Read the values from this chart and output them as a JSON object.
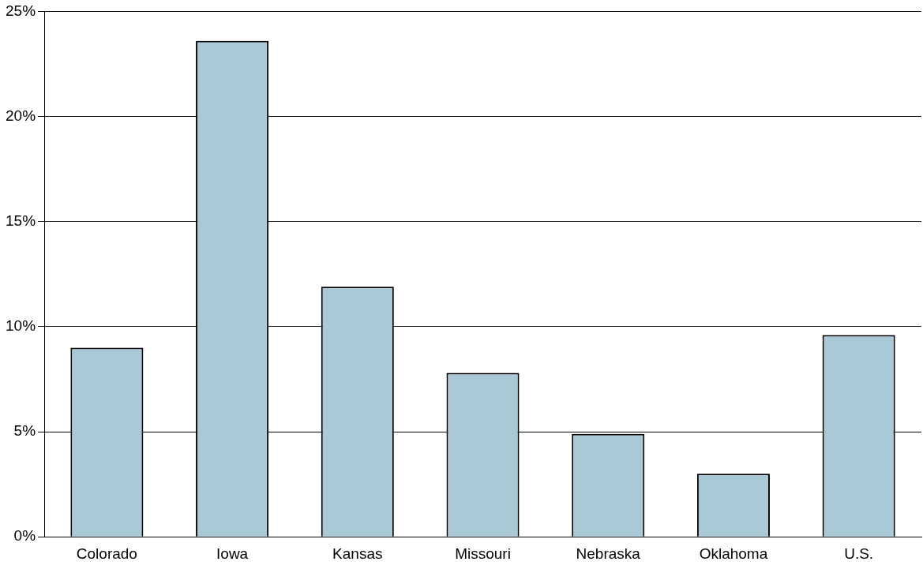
{
  "chart_data": {
    "type": "bar",
    "categories": [
      "Colorado",
      "Iowa",
      "Kansas",
      "Missouri",
      "Nebraska",
      "Oklahoma",
      "U.S."
    ],
    "values": [
      9.0,
      23.6,
      11.9,
      7.8,
      4.9,
      3.0,
      9.6
    ],
    "color": "#a9c9d6",
    "ylim": [
      0,
      25
    ],
    "yticks": [
      {
        "value": 0,
        "label": "0%"
      },
      {
        "value": 5,
        "label": "5%"
      },
      {
        "value": 10,
        "label": "10%"
      },
      {
        "value": 15,
        "label": "15%"
      },
      {
        "value": 20,
        "label": "20%"
      },
      {
        "value": 25,
        "label": "25%"
      }
    ],
    "grid": "y",
    "legend": false
  }
}
